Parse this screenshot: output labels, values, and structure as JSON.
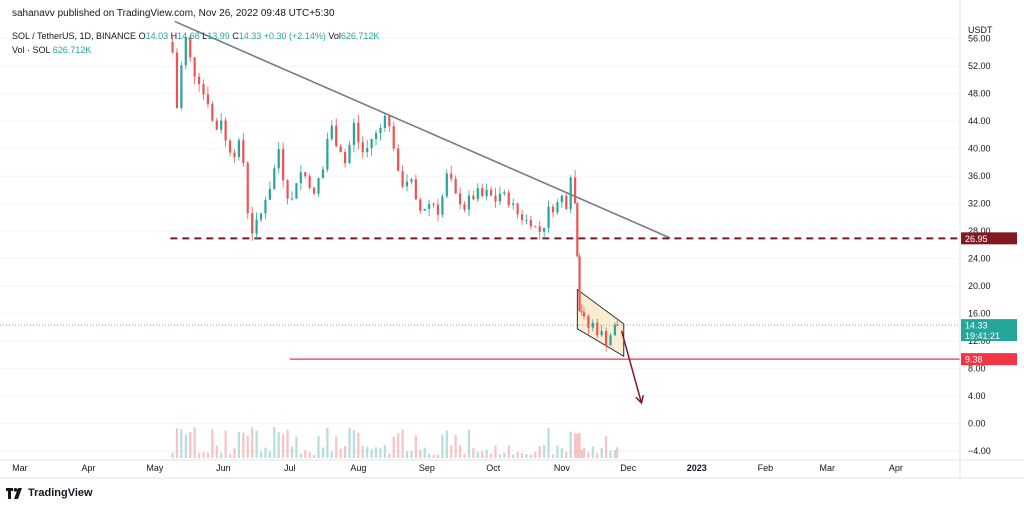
{
  "header": {
    "publisher": "sahanavv published on TradingView.com, Nov 26, 2022 09:48 UTC+5:30",
    "symbol": "SOL / TetherUS, 1D, BINANCE",
    "o_label": "O",
    "o_value": "14.03",
    "h_label": "H",
    "h_value": "14.68",
    "l_label": "L",
    "l_value": "13.99",
    "c_label": "C",
    "c_value": "14.33",
    "change": "+0.30 (+2.14%)",
    "vol_label": "Vol",
    "vol_value": "626.712K",
    "vol_symbol_label": "Vol · SOL",
    "vol_symbol_value": "626.712K"
  },
  "branding": {
    "logo_text": "TradingView",
    "logo_icon": "tradingview-logo-icon"
  },
  "colors": {
    "up": "#26a69a",
    "down": "#ef5350",
    "trendline": "#787b86",
    "support": "#801922",
    "target": "#f23645",
    "channel": "#fbe9c7"
  },
  "chart_data": {
    "type": "candlestick",
    "currency": "USDT",
    "y_ticks": [
      "56.00",
      "52.00",
      "48.00",
      "44.00",
      "40.00",
      "36.00",
      "32.00",
      "28.00",
      "24.00",
      "20.00",
      "16.00",
      "12.00",
      "8.00",
      "4.00",
      "0.00",
      "−4.00"
    ],
    "x_ticks": [
      "Mar",
      "Apr",
      "May",
      "Jun",
      "Jul",
      "Aug",
      "Sep",
      "Oct",
      "Nov",
      "Dec",
      "2023",
      "Feb",
      "Mar",
      "Apr"
    ],
    "ylim": [
      -5,
      59
    ],
    "price_labels": [
      {
        "value": 26.95,
        "text": "26.95",
        "color": "#801922"
      },
      {
        "value": 14.33,
        "text": "14.33",
        "sub": "19:41:21",
        "color": "#26a69a"
      },
      {
        "value": 9.38,
        "text": "9.38",
        "color": "#f23645"
      }
    ],
    "closes": [
      {
        "date": "2022-05-09",
        "close": 54.0
      },
      {
        "date": "2022-05-11",
        "close": 46.0
      },
      {
        "date": "2022-05-13",
        "close": 52.0
      },
      {
        "date": "2022-05-15",
        "close": 56.0
      },
      {
        "date": "2022-05-17",
        "close": 53.0
      },
      {
        "date": "2022-05-19",
        "close": 51.0
      },
      {
        "date": "2022-05-21",
        "close": 50.0
      },
      {
        "date": "2022-05-23",
        "close": 48.0
      },
      {
        "date": "2022-05-25",
        "close": 47.0
      },
      {
        "date": "2022-05-27",
        "close": 44.0
      },
      {
        "date": "2022-05-29",
        "close": 43.0
      },
      {
        "date": "2022-05-31",
        "close": 44.5
      },
      {
        "date": "2022-06-02",
        "close": 41.0
      },
      {
        "date": "2022-06-04",
        "close": 40.0
      },
      {
        "date": "2022-06-06",
        "close": 39.5
      },
      {
        "date": "2022-06-08",
        "close": 40.5
      },
      {
        "date": "2022-06-10",
        "close": 38.0
      },
      {
        "date": "2022-06-12",
        "close": 31.0
      },
      {
        "date": "2022-06-14",
        "close": 28.0
      },
      {
        "date": "2022-06-16",
        "close": 29.0
      },
      {
        "date": "2022-06-18",
        "close": 30.5
      },
      {
        "date": "2022-06-20",
        "close": 33.0
      },
      {
        "date": "2022-06-22",
        "close": 34.5
      },
      {
        "date": "2022-06-24",
        "close": 37.0
      },
      {
        "date": "2022-06-26",
        "close": 40.0
      },
      {
        "date": "2022-06-28",
        "close": 36.0
      },
      {
        "date": "2022-06-30",
        "close": 33.5
      },
      {
        "date": "2022-07-02",
        "close": 32.5
      },
      {
        "date": "2022-07-04",
        "close": 35.5
      },
      {
        "date": "2022-07-06",
        "close": 36.5
      },
      {
        "date": "2022-07-08",
        "close": 36.0
      },
      {
        "date": "2022-07-10",
        "close": 35.0
      },
      {
        "date": "2022-07-12",
        "close": 33.0
      },
      {
        "date": "2022-07-14",
        "close": 35.5
      },
      {
        "date": "2022-07-16",
        "close": 37.0
      },
      {
        "date": "2022-07-18",
        "close": 41.5
      },
      {
        "date": "2022-07-20",
        "close": 43.0
      },
      {
        "date": "2022-07-22",
        "close": 41.0
      },
      {
        "date": "2022-07-24",
        "close": 40.0
      },
      {
        "date": "2022-07-26",
        "close": 38.0
      },
      {
        "date": "2022-07-28",
        "close": 40.5
      },
      {
        "date": "2022-07-30",
        "close": 43.5
      },
      {
        "date": "2022-08-01",
        "close": 41.0
      },
      {
        "date": "2022-08-03",
        "close": 39.5
      },
      {
        "date": "2022-08-05",
        "close": 40.0
      },
      {
        "date": "2022-08-07",
        "close": 41.5
      },
      {
        "date": "2022-08-09",
        "close": 42.0
      },
      {
        "date": "2022-08-11",
        "close": 43.0
      },
      {
        "date": "2022-08-13",
        "close": 45.5
      },
      {
        "date": "2022-08-15",
        "close": 43.0
      },
      {
        "date": "2022-08-17",
        "close": 40.5
      },
      {
        "date": "2022-08-19",
        "close": 36.0
      },
      {
        "date": "2022-08-21",
        "close": 35.0
      },
      {
        "date": "2022-08-23",
        "close": 35.5
      },
      {
        "date": "2022-08-25",
        "close": 35.0
      },
      {
        "date": "2022-08-27",
        "close": 32.0
      },
      {
        "date": "2022-08-29",
        "close": 31.0
      },
      {
        "date": "2022-08-31",
        "close": 31.5
      },
      {
        "date": "2022-09-02",
        "close": 32.0
      },
      {
        "date": "2022-09-04",
        "close": 32.0
      },
      {
        "date": "2022-09-06",
        "close": 31.0
      },
      {
        "date": "2022-09-08",
        "close": 33.0
      },
      {
        "date": "2022-09-10",
        "close": 36.0
      },
      {
        "date": "2022-09-12",
        "close": 35.0
      },
      {
        "date": "2022-09-14",
        "close": 33.0
      },
      {
        "date": "2022-09-16",
        "close": 32.5
      },
      {
        "date": "2022-09-18",
        "close": 31.5
      },
      {
        "date": "2022-09-20",
        "close": 32.5
      },
      {
        "date": "2022-09-22",
        "close": 33.0
      },
      {
        "date": "2022-09-24",
        "close": 33.5
      },
      {
        "date": "2022-09-26",
        "close": 33.0
      },
      {
        "date": "2022-09-28",
        "close": 33.5
      },
      {
        "date": "2022-09-30",
        "close": 33.0
      },
      {
        "date": "2022-10-02",
        "close": 32.5
      },
      {
        "date": "2022-10-04",
        "close": 33.5
      },
      {
        "date": "2022-10-06",
        "close": 33.0
      },
      {
        "date": "2022-10-08",
        "close": 32.5
      },
      {
        "date": "2022-10-10",
        "close": 31.5
      },
      {
        "date": "2022-10-12",
        "close": 30.5
      },
      {
        "date": "2022-10-14",
        "close": 30.0
      },
      {
        "date": "2022-10-16",
        "close": 29.5
      },
      {
        "date": "2022-10-18",
        "close": 29.5
      },
      {
        "date": "2022-10-20",
        "close": 28.5
      },
      {
        "date": "2022-10-22",
        "close": 28.0
      },
      {
        "date": "2022-10-24",
        "close": 29.0
      },
      {
        "date": "2022-10-26",
        "close": 31.0
      },
      {
        "date": "2022-10-28",
        "close": 31.5
      },
      {
        "date": "2022-10-30",
        "close": 32.0
      },
      {
        "date": "2022-11-01",
        "close": 33.0
      },
      {
        "date": "2022-11-03",
        "close": 32.0
      },
      {
        "date": "2022-11-05",
        "close": 36.5
      },
      {
        "date": "2022-11-07",
        "close": 32.0
      },
      {
        "date": "2022-11-08",
        "close": 25.0
      },
      {
        "date": "2022-11-09",
        "close": 17.0
      },
      {
        "date": "2022-11-10",
        "close": 16.5
      },
      {
        "date": "2022-11-11",
        "close": 15.0
      },
      {
        "date": "2022-11-13",
        "close": 14.0
      },
      {
        "date": "2022-11-15",
        "close": 14.5
      },
      {
        "date": "2022-11-17",
        "close": 13.5
      },
      {
        "date": "2022-11-19",
        "close": 13.0
      },
      {
        "date": "2022-11-21",
        "close": 12.0
      },
      {
        "date": "2022-11-23",
        "close": 13.0
      },
      {
        "date": "2022-11-25",
        "close": 14.0
      },
      {
        "date": "2022-11-26",
        "close": 14.33
      }
    ],
    "annotations": [
      {
        "type": "trendline",
        "from": {
          "date": "2022-05-10",
          "value": 58.5
        },
        "to": {
          "date": "2022-12-20",
          "value": 27.0
        }
      },
      {
        "type": "horizontal-dashed",
        "from": "2022-05-08",
        "to": "2023-04-30",
        "value": 26.95
      },
      {
        "type": "horizontal",
        "from": "2022-07-01",
        "to": "2023-04-30",
        "value": 9.38
      },
      {
        "type": "channel",
        "points": [
          {
            "date": "2022-11-08",
            "value": 19.5
          },
          {
            "date": "2022-11-29",
            "value": 14.5
          },
          {
            "date": "2022-11-29",
            "value": 9.8
          },
          {
            "date": "2022-11-08",
            "value": 13.8
          }
        ]
      },
      {
        "type": "arrow",
        "from": {
          "date": "2022-11-28",
          "value": 13.5
        },
        "to": {
          "date": "2022-12-07",
          "value": 3.0
        }
      }
    ]
  }
}
